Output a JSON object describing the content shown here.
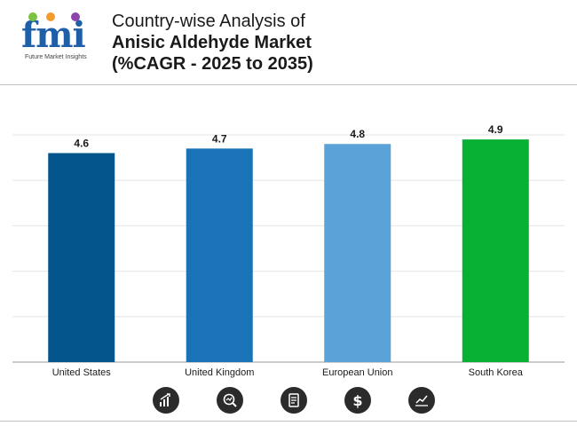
{
  "header": {
    "logo_text": "fmi",
    "logo_subtitle": "Future Market Insights",
    "title_line1": "Country-wise Analysis of",
    "title_line2": "Anisic Aldehyde Market",
    "title_line3": "(%CAGR - 2025 to 2035)"
  },
  "chart_data": {
    "type": "bar",
    "categories": [
      "United States",
      "United Kingdom",
      "European Union",
      "South Korea"
    ],
    "values": [
      4.6,
      4.7,
      4.8,
      4.9
    ],
    "colors": [
      "#03558c",
      "#1a73b6",
      "#5aa3d8",
      "#08b033"
    ],
    "data_labels": [
      "4.6",
      "4.7",
      "4.8",
      "4.9"
    ],
    "ylim": [
      0,
      5
    ],
    "grid": true,
    "title": "",
    "xlabel": "",
    "ylabel": ""
  },
  "footer_icons": [
    "bar-growth-icon",
    "magnifier-chart-icon",
    "document-icon",
    "dollar-icon",
    "trend-chart-icon"
  ]
}
